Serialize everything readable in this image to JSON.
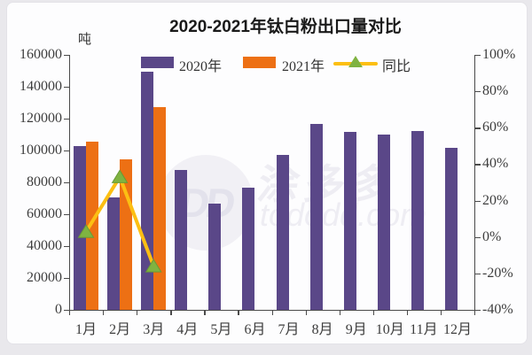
{
  "chart_data": {
    "type": "bar",
    "title": "2020-2021年钛白粉出口量对比",
    "unit_label": "吨",
    "categories": [
      "1月",
      "2月",
      "3月",
      "4月",
      "5月",
      "6月",
      "7月",
      "8月",
      "9月",
      "10月",
      "11月",
      "12月"
    ],
    "series": [
      {
        "name": "2020年",
        "type": "bar",
        "color": "#5a4788",
        "values": [
          102700,
          70600,
          149400,
          87800,
          66500,
          76700,
          97200,
          116600,
          111500,
          110100,
          112300,
          101600
        ]
      },
      {
        "name": "2021年",
        "type": "bar",
        "color": "#ed7014",
        "values": [
          105700,
          94400,
          127000,
          null,
          null,
          null,
          null,
          null,
          null,
          null,
          null,
          null
        ]
      },
      {
        "name": "同比",
        "type": "line",
        "color": "#fcbf13",
        "marker": "triangle",
        "marker_color": "#7fb341",
        "values": [
          2.9,
          33,
          -16,
          null,
          null,
          null,
          null,
          null,
          null,
          null,
          null,
          null
        ]
      }
    ],
    "left_axis": {
      "min": 0,
      "max": 160000,
      "step": 20000,
      "tick_labels": [
        "0",
        "20000",
        "40000",
        "60000",
        "80000",
        "100000",
        "120000",
        "140000",
        "160000"
      ]
    },
    "right_axis": {
      "min": -40,
      "max": 100,
      "step": 20,
      "suffix": "%",
      "tick_labels": [
        "-40%",
        "-20%",
        "0%",
        "20%",
        "40%",
        "60%",
        "80%",
        "100%"
      ]
    },
    "legend_position": "top",
    "gridlines": false
  },
  "watermark": {
    "logo_text": "DD",
    "text": "涂多多",
    "domain": "tododd.com"
  },
  "colors": {
    "bar_2020": "#5a4788",
    "bar_2021": "#ed7014",
    "line_yoy": "#fcbf13",
    "marker_green": "#7fb341",
    "axis": "#4a4a4a"
  }
}
